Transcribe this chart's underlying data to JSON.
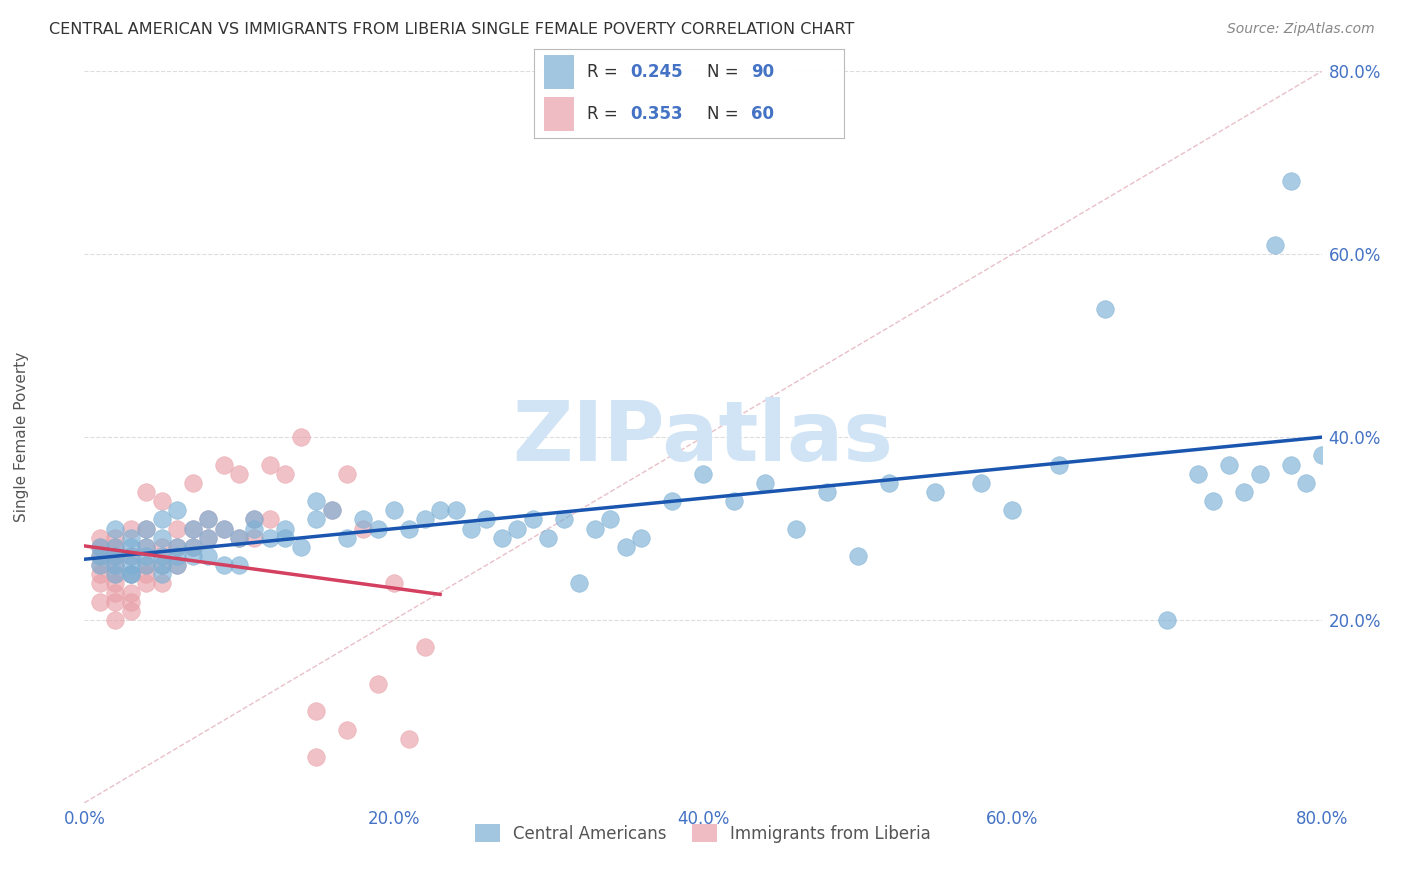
{
  "title": "CENTRAL AMERICAN VS IMMIGRANTS FROM LIBERIA SINGLE FEMALE POVERTY CORRELATION CHART",
  "source": "Source: ZipAtlas.com",
  "ylabel": "Single Female Poverty",
  "xlim": [
    0,
    0.8
  ],
  "ylim": [
    0,
    0.8
  ],
  "xticks": [
    0.0,
    0.2,
    0.4,
    0.6,
    0.8
  ],
  "yticks": [
    0.2,
    0.4,
    0.6,
    0.8
  ],
  "xtick_labels": [
    "0.0%",
    "20.0%",
    "40.0%",
    "60.0%",
    "80.0%"
  ],
  "ytick_labels": [
    "20.0%",
    "40.0%",
    "60.0%",
    "80.0%"
  ],
  "blue_R": 0.245,
  "blue_N": 90,
  "pink_R": 0.353,
  "pink_N": 60,
  "blue_color": "#7bafd4",
  "pink_color": "#e8a0a8",
  "blue_line_color": "#1a56b0",
  "pink_line_color": "#d44060",
  "diag_color": "#cccccc",
  "legend_label_blue": "Central Americans",
  "legend_label_pink": "Immigrants from Liberia",
  "blue_x": [
    0.01,
    0.01,
    0.01,
    0.02,
    0.02,
    0.02,
    0.02,
    0.02,
    0.03,
    0.03,
    0.03,
    0.03,
    0.03,
    0.03,
    0.04,
    0.04,
    0.04,
    0.04,
    0.05,
    0.05,
    0.05,
    0.05,
    0.05,
    0.06,
    0.06,
    0.06,
    0.06,
    0.07,
    0.07,
    0.07,
    0.08,
    0.08,
    0.08,
    0.09,
    0.09,
    0.1,
    0.1,
    0.11,
    0.11,
    0.12,
    0.13,
    0.13,
    0.14,
    0.15,
    0.15,
    0.16,
    0.17,
    0.18,
    0.19,
    0.2,
    0.21,
    0.22,
    0.23,
    0.24,
    0.25,
    0.26,
    0.27,
    0.28,
    0.29,
    0.3,
    0.31,
    0.32,
    0.33,
    0.34,
    0.35,
    0.36,
    0.38,
    0.4,
    0.42,
    0.44,
    0.46,
    0.48,
    0.5,
    0.52,
    0.55,
    0.58,
    0.6,
    0.63,
    0.66,
    0.7,
    0.72,
    0.73,
    0.74,
    0.75,
    0.76,
    0.77,
    0.78,
    0.78,
    0.79,
    0.8
  ],
  "blue_y": [
    0.27,
    0.28,
    0.26,
    0.25,
    0.27,
    0.28,
    0.26,
    0.3,
    0.25,
    0.26,
    0.27,
    0.28,
    0.29,
    0.25,
    0.26,
    0.27,
    0.28,
    0.3,
    0.25,
    0.26,
    0.27,
    0.29,
    0.31,
    0.26,
    0.27,
    0.28,
    0.32,
    0.27,
    0.28,
    0.3,
    0.27,
    0.29,
    0.31,
    0.26,
    0.3,
    0.26,
    0.29,
    0.3,
    0.31,
    0.29,
    0.3,
    0.29,
    0.28,
    0.31,
    0.33,
    0.32,
    0.29,
    0.31,
    0.3,
    0.32,
    0.3,
    0.31,
    0.32,
    0.32,
    0.3,
    0.31,
    0.29,
    0.3,
    0.31,
    0.29,
    0.31,
    0.24,
    0.3,
    0.31,
    0.28,
    0.29,
    0.33,
    0.36,
    0.33,
    0.35,
    0.3,
    0.34,
    0.27,
    0.35,
    0.34,
    0.35,
    0.32,
    0.37,
    0.54,
    0.2,
    0.36,
    0.33,
    0.37,
    0.34,
    0.36,
    0.61,
    0.37,
    0.68,
    0.35,
    0.38
  ],
  "pink_x": [
    0.01,
    0.01,
    0.01,
    0.01,
    0.01,
    0.01,
    0.01,
    0.02,
    0.02,
    0.02,
    0.02,
    0.02,
    0.02,
    0.02,
    0.02,
    0.02,
    0.03,
    0.03,
    0.03,
    0.03,
    0.03,
    0.03,
    0.04,
    0.04,
    0.04,
    0.04,
    0.04,
    0.04,
    0.05,
    0.05,
    0.05,
    0.05,
    0.06,
    0.06,
    0.06,
    0.07,
    0.07,
    0.07,
    0.08,
    0.08,
    0.09,
    0.09,
    0.1,
    0.1,
    0.11,
    0.11,
    0.12,
    0.12,
    0.13,
    0.14,
    0.15,
    0.15,
    0.16,
    0.17,
    0.17,
    0.18,
    0.19,
    0.2,
    0.21,
    0.22
  ],
  "pink_y": [
    0.24,
    0.25,
    0.26,
    0.27,
    0.28,
    0.29,
    0.22,
    0.23,
    0.24,
    0.25,
    0.26,
    0.27,
    0.28,
    0.29,
    0.2,
    0.22,
    0.21,
    0.22,
    0.23,
    0.25,
    0.27,
    0.3,
    0.24,
    0.25,
    0.26,
    0.28,
    0.3,
    0.34,
    0.24,
    0.26,
    0.28,
    0.33,
    0.28,
    0.3,
    0.26,
    0.28,
    0.3,
    0.35,
    0.29,
    0.31,
    0.3,
    0.37,
    0.29,
    0.36,
    0.29,
    0.31,
    0.31,
    0.37,
    0.36,
    0.4,
    0.05,
    0.1,
    0.32,
    0.36,
    0.08,
    0.3,
    0.13,
    0.24,
    0.07,
    0.17
  ],
  "watermark_text": "ZIPatlas",
  "watermark_color": "#d0e4f5",
  "background_color": "#ffffff",
  "grid_color": "#dddddd"
}
